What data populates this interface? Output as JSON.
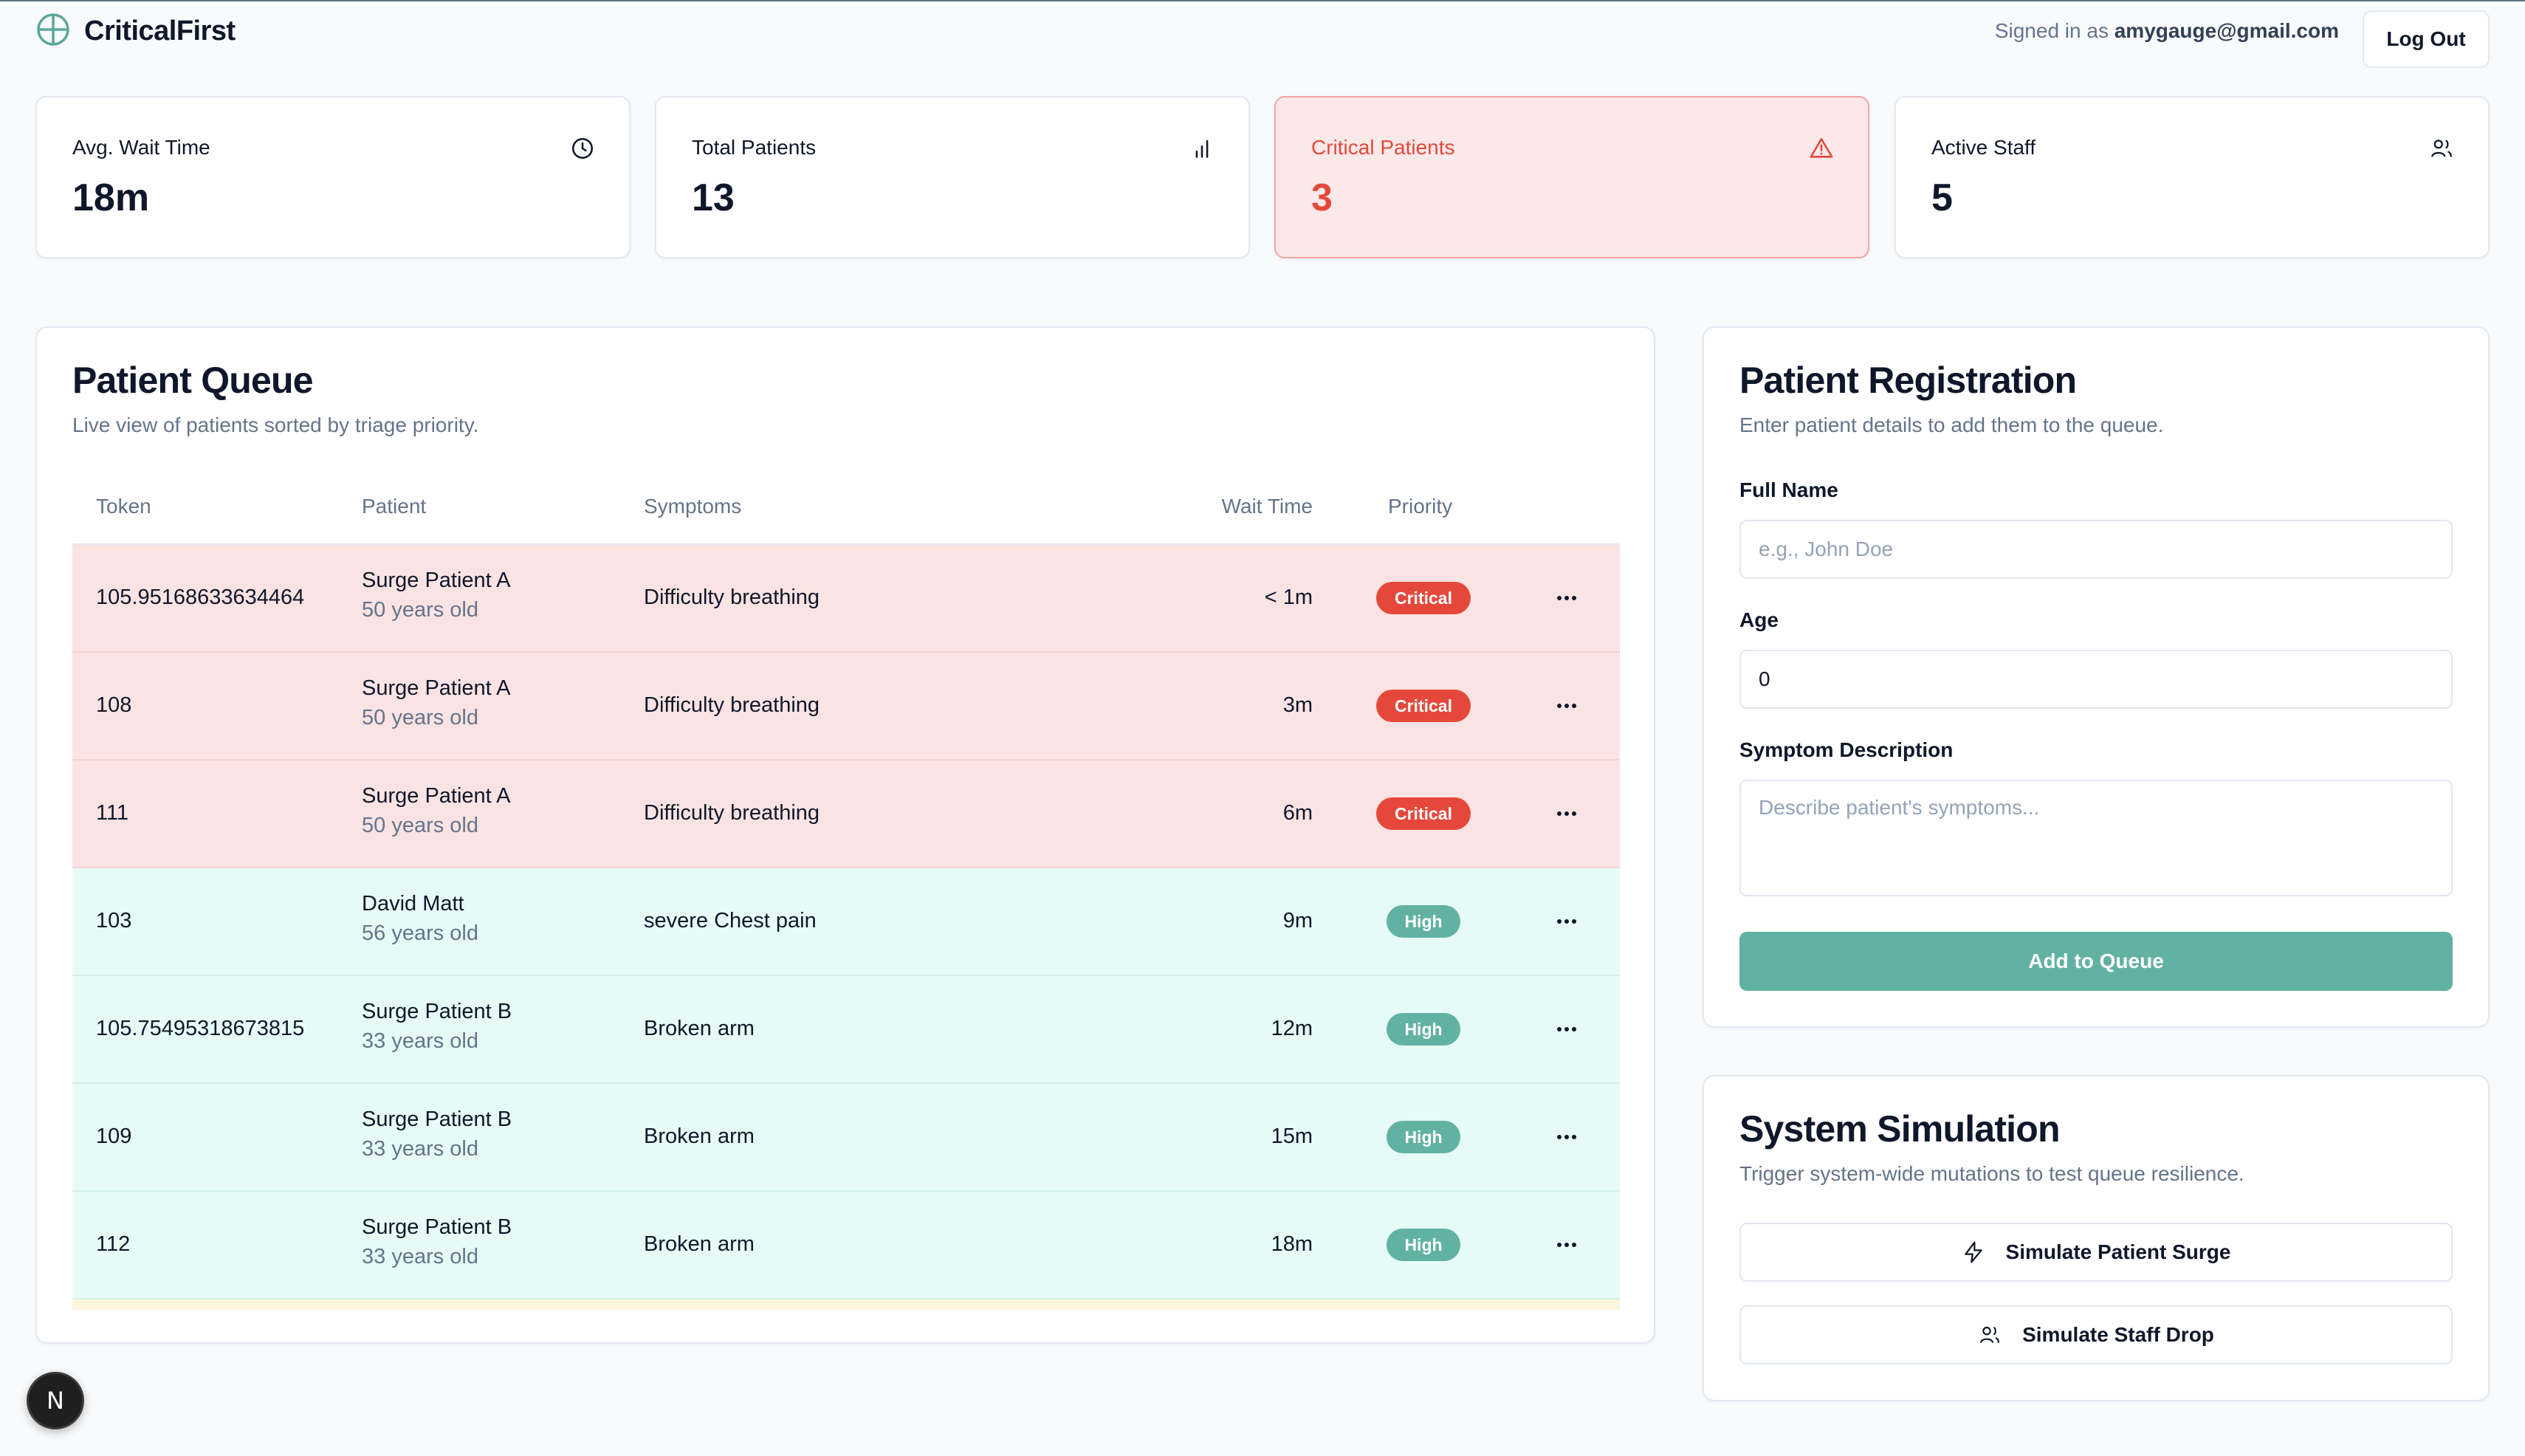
{
  "header": {
    "brand": "CriticalFirst",
    "signed_in_prefix": "Signed in as ",
    "signed_in_email": "amygauge@gmail.com",
    "logout_label": "Log Out"
  },
  "stats": [
    {
      "label": "Avg. Wait Time",
      "value": "18m",
      "icon": "clock-icon"
    },
    {
      "label": "Total Patients",
      "value": "13",
      "icon": "bar-chart-icon"
    },
    {
      "label": "Critical Patients",
      "value": "3",
      "icon": "alert-triangle-icon"
    },
    {
      "label": "Active Staff",
      "value": "5",
      "icon": "users-icon"
    }
  ],
  "queue": {
    "title": "Patient Queue",
    "subtitle": "Live view of patients sorted by triage priority.",
    "columns": [
      "Token",
      "Patient",
      "Symptoms",
      "Wait Time",
      "Priority"
    ],
    "rows": [
      {
        "token": "105.95168633634464",
        "name": "Surge Patient A",
        "age": "50 years old",
        "symptoms": "Difficulty breathing",
        "wait": "< 1m",
        "priority": "Critical"
      },
      {
        "token": "108",
        "name": "Surge Patient A",
        "age": "50 years old",
        "symptoms": "Difficulty breathing",
        "wait": "3m",
        "priority": "Critical"
      },
      {
        "token": "111",
        "name": "Surge Patient A",
        "age": "50 years old",
        "symptoms": "Difficulty breathing",
        "wait": "6m",
        "priority": "Critical"
      },
      {
        "token": "103",
        "name": "David Matt",
        "age": "56 years old",
        "symptoms": "severe Chest pain",
        "wait": "9m",
        "priority": "High"
      },
      {
        "token": "105.75495318673815",
        "name": "Surge Patient B",
        "age": "33 years old",
        "symptoms": "Broken arm",
        "wait": "12m",
        "priority": "High"
      },
      {
        "token": "109",
        "name": "Surge Patient B",
        "age": "33 years old",
        "symptoms": "Broken arm",
        "wait": "15m",
        "priority": "High"
      },
      {
        "token": "112",
        "name": "Surge Patient B",
        "age": "33 years old",
        "symptoms": "Broken arm",
        "wait": "18m",
        "priority": "High"
      }
    ]
  },
  "registration": {
    "title": "Patient Registration",
    "subtitle": "Enter patient details to add them to the queue.",
    "full_name_label": "Full Name",
    "full_name_placeholder": "e.g., John Doe",
    "age_label": "Age",
    "age_value": "0",
    "symptom_label": "Symptom Description",
    "symptom_placeholder": "Describe patient's symptoms...",
    "submit_label": "Add to Queue"
  },
  "simulation": {
    "title": "System Simulation",
    "subtitle": "Trigger system-wide mutations to test queue resilience.",
    "surge_label": "Simulate Patient Surge",
    "staff_drop_label": "Simulate Staff Drop"
  },
  "dev_badge": "N",
  "colors": {
    "critical": "#e5483a",
    "high": "#62b2a4",
    "critical_row": "#fbe3e3",
    "high_row": "#e6fbf5"
  }
}
